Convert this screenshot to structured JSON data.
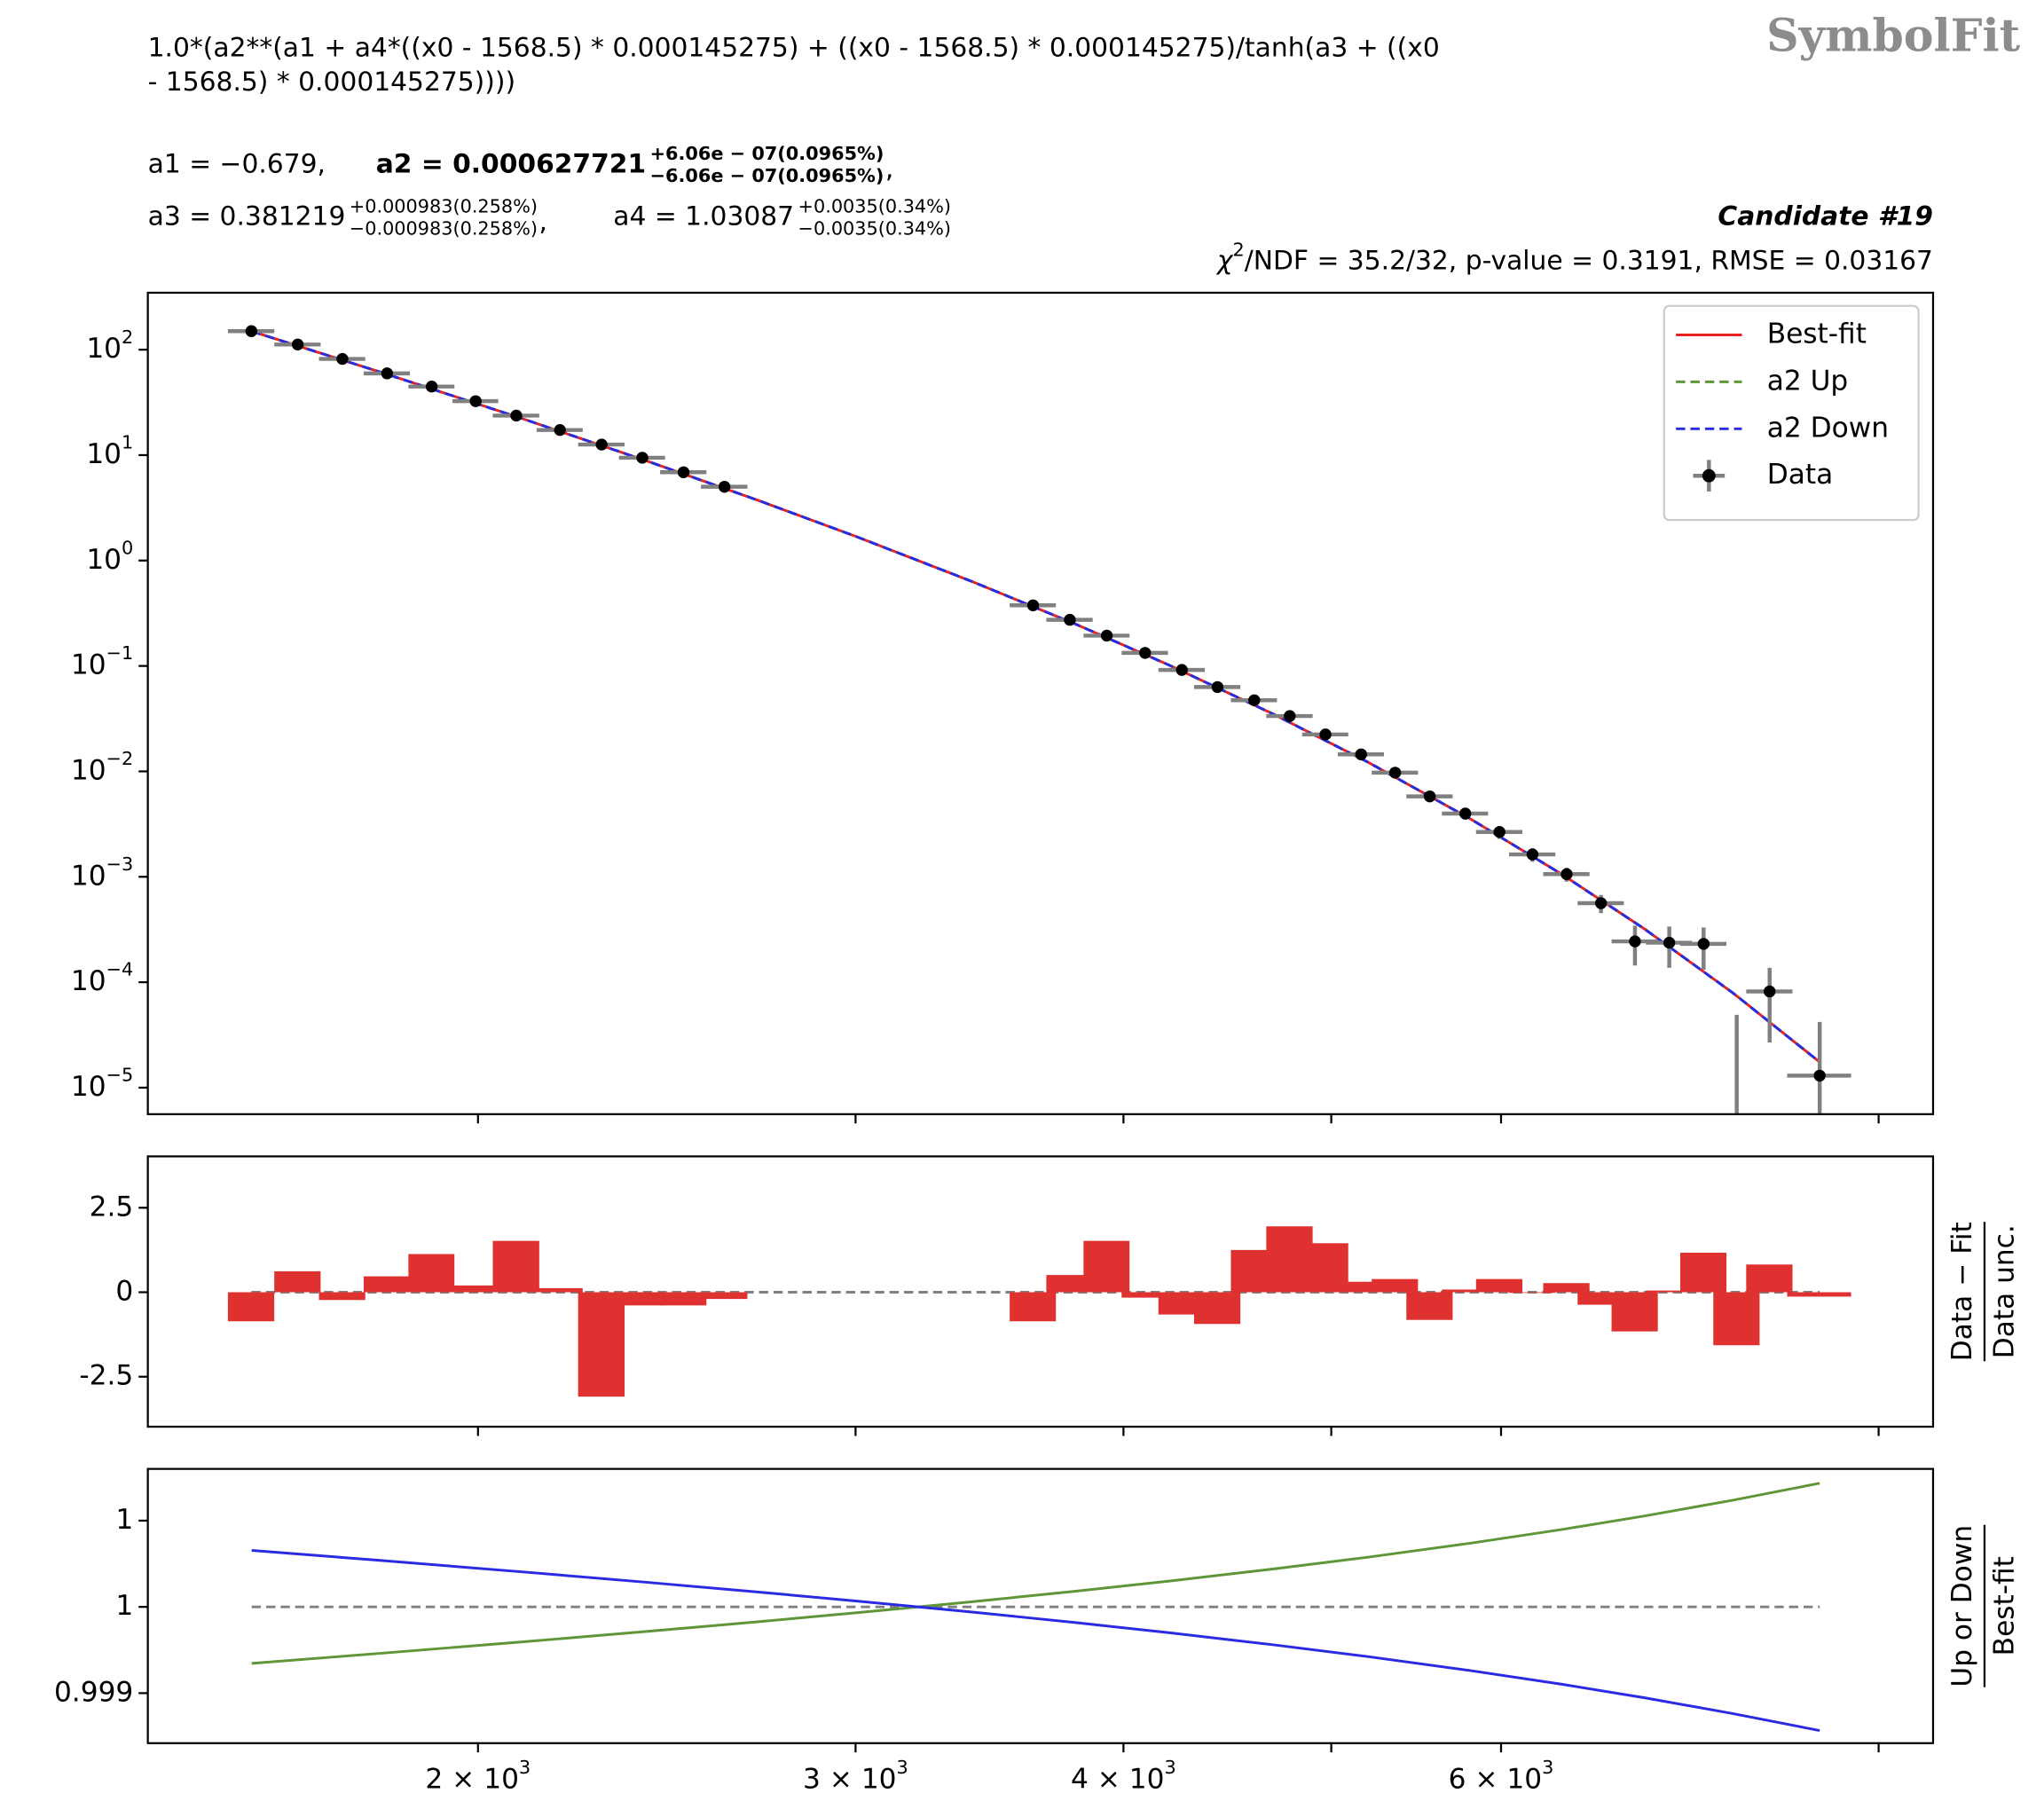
{
  "logo": "SymbolFit",
  "formula": [
    "1.0*(a2**(a1 + a4*((x0 - 1568.5) * 0.000145275) + ((x0 - 1568.5) * 0.000145275)/tanh(a3 + ((x0",
    "- 1568.5) * 0.000145275))))"
  ],
  "params": [
    {
      "text": "a1 = −0.679,"
    },
    {
      "text": "a2 = 0.000627721",
      "up": "+6.06e − 07(0.0965%)",
      "down": "−6.06e − 07(0.0965%)",
      "suffix": ","
    },
    {
      "text": "a3 = 0.381219",
      "up": "+0.000983(0.258%)",
      "down": "−0.000983(0.258%)",
      "suffix": ","
    },
    {
      "text": "a4 = 1.03087",
      "up": "+0.0035(0.34%)",
      "down": "−0.0035(0.34%)"
    }
  ],
  "candidate": "Candidate #19",
  "stats": {
    "chi": "χ",
    "sup": "2",
    "text": "/NDF = 35.2/32, p-value = 0.3191, RMSE = 0.03167"
  },
  "chart_data": [
    {
      "type": "line",
      "log_x": true,
      "log_y": true,
      "x": [
        1568.5,
        1800,
        2100,
        2400,
        2700,
        3000,
        3400,
        3800,
        4200,
        4700,
        5200,
        5800,
        6400,
        7000,
        7700,
        8448
      ],
      "series": [
        {
          "name": "Best-fit",
          "color": "#e8231f",
          "style": "solid",
          "values": [
            149.4,
            61.51,
            22.02,
            8.737,
            3.741,
            1.697,
            0.6322,
            0.249,
            0.1021,
            0.03482,
            0.01225,
            0.003586,
            0.001067,
            0.0003197,
            7.857e-05,
            1.749e-05
          ]
        },
        {
          "name": "a2 Up",
          "color": "#5e9638",
          "style": "dashed",
          "values": [
            149.4,
            61.51,
            22.02,
            8.737,
            3.741,
            1.697,
            0.6322,
            0.249,
            0.1021,
            0.03482,
            0.01225,
            0.003586,
            0.001067,
            0.0003197,
            7.857e-05,
            1.749e-05
          ]
        },
        {
          "name": "a2 Down",
          "color": "#2a2ae2",
          "style": "dashed",
          "values": [
            149.4,
            61.51,
            22.02,
            8.737,
            3.741,
            1.697,
            0.6322,
            0.249,
            0.1021,
            0.03482,
            0.01225,
            0.003586,
            0.001067,
            0.0003197,
            7.857e-05,
            1.749e-05
          ]
        }
      ],
      "points": {
        "name": "Data",
        "color": "#000000",
        "error_color": "#808080",
        "x": [
          1568,
          1648,
          1729,
          1814,
          1903,
          1995,
          2084,
          2184,
          2284,
          2386,
          2494,
          2606,
          3630,
          3776,
          3929,
          4094,
          4259,
          4425,
          4603,
          4782,
          4969,
          5163,
          5355,
          5558,
          5774,
          5990,
          6206,
          6438,
          6680,
          6928,
          7188,
          7458,
          7728,
          8006,
          8448
        ],
        "xerr": [
          39,
          41,
          43,
          45,
          47,
          49,
          52,
          54,
          57,
          59,
          62,
          65,
          90,
          94,
          97,
          102,
          106,
          110,
          114,
          119,
          123,
          128,
          133,
          138,
          143,
          149,
          154,
          160,
          166,
          172,
          178,
          185,
          192,
          199,
          290
        ],
        "values": [
          150,
          112,
          81.7,
          59.6,
          44.7,
          32.5,
          23.7,
          17.3,
          12.6,
          9.44,
          6.88,
          5.01,
          0.376,
          0.274,
          0.194,
          0.133,
          0.0917,
          0.0631,
          0.0473,
          0.0335,
          0.0224,
          0.0145,
          0.00972,
          0.00579,
          0.00398,
          0.00266,
          0.00163,
          0.00106,
          0.000562,
          0.000244,
          0.000237,
          0.000231,
          0,
          8.18e-05,
          1.3e-05
        ],
        "yerr": [
          4.5,
          3.5,
          2.6,
          2.0,
          1.5,
          1.1,
          0.85,
          0.65,
          0.5,
          0.38,
          0.29,
          0.22,
          0.018,
          0.014,
          0.011,
          0.0082,
          0.006,
          0.0045,
          0.0035,
          0.0027,
          0.002,
          0.0014,
          0.001,
          0.00068,
          0.0005,
          0.00037,
          0.00024,
          0.00016,
          0.00011,
          0.0001,
          0.0001,
          0.0001,
          4.9e-05,
          5.5e-05,
          2.9e-05
        ]
      },
      "xlim": [
        1403,
        9542
      ],
      "ylim": [
        5.6e-06,
        347
      ],
      "yticks": [
        {
          "value": 100,
          "label": "10",
          "sup": "2"
        },
        {
          "value": 10,
          "label": "10",
          "sup": "1"
        },
        {
          "value": 1,
          "label": "10",
          "sup": "0"
        },
        {
          "value": 0.1,
          "label": "10",
          "sup": "−1"
        },
        {
          "value": 0.01,
          "label": "10",
          "sup": "−2"
        },
        {
          "value": 0.001,
          "label": "10",
          "sup": "−3"
        },
        {
          "value": 0.0001,
          "label": "10",
          "sup": "−4"
        },
        {
          "value": 1e-05,
          "label": "10",
          "sup": "−5"
        }
      ],
      "legend": "upper right"
    },
    {
      "type": "bar",
      "log_x": true,
      "color": "#e03131",
      "x": [
        1568,
        1648,
        1729,
        1814,
        1903,
        1995,
        2084,
        2184,
        2284,
        2386,
        2494,
        2606,
        3630,
        3776,
        3929,
        4094,
        4259,
        4425,
        4603,
        4782,
        4969,
        5163,
        5355,
        5558,
        5774,
        5990,
        6206,
        6438,
        6680,
        6928,
        7188,
        7458,
        7728,
        8006,
        8448
      ],
      "xerr": [
        39,
        41,
        43,
        45,
        47,
        49,
        52,
        54,
        57,
        59,
        62,
        65,
        90,
        94,
        97,
        102,
        106,
        110,
        114,
        119,
        123,
        128,
        133,
        138,
        143,
        149,
        154,
        160,
        166,
        172,
        178,
        185,
        192,
        199,
        290
      ],
      "values": [
        -0.86,
        0.62,
        -0.23,
        0.47,
        1.13,
        0.2,
        1.52,
        0.12,
        -3.09,
        -0.39,
        -0.39,
        -0.2,
        -0.86,
        0.51,
        1.52,
        -0.16,
        -0.66,
        -0.94,
        1.25,
        1.95,
        1.45,
        0.31,
        0.39,
        -0.82,
        0.08,
        0.39,
        -0.02,
        0.27,
        -0.37,
        -1.16,
        0.05,
        1.17,
        -1.57,
        0.82,
        -0.13
      ],
      "xlim": [
        1403,
        9542
      ],
      "ylim": [
        -3.98,
        4.02
      ],
      "yticks": [
        2.5,
        0,
        -2.5
      ],
      "hline": 0,
      "ylabel": [
        "Data − Fit",
        "Data unc."
      ]
    },
    {
      "type": "line",
      "log_x": true,
      "x": [
        1568.5,
        1800,
        2100,
        2400,
        2700,
        3000,
        3400,
        3800,
        4200,
        4700,
        5200,
        5800,
        6400,
        7000,
        7700,
        8448
      ],
      "series": [
        {
          "color": "#5e9638",
          "style": "solid",
          "values": [
            0.999345,
            0.999461,
            0.999595,
            0.999716,
            0.999827,
            0.999931,
            1.00006,
            1.000182,
            1.000299,
            1.00044,
            1.000576,
            1.000737,
            1.000896,
            1.001054,
            1.001238,
            1.001434
          ]
        },
        {
          "color": "#2a2ae2",
          "style": "solid",
          "values": [
            1.000655,
            1.000539,
            1.000405,
            1.000284,
            1.000173,
            1.000069,
            0.99994,
            0.999818,
            0.999701,
            0.99956,
            0.999424,
            0.999263,
            0.999104,
            0.998946,
            0.998762,
            0.998566
          ]
        }
      ],
      "xlim": [
        1403,
        9542
      ],
      "ylim": [
        0.99842,
        1.0016
      ],
      "yticks": [
        {
          "value": 1.001,
          "label": "1"
        },
        1,
        0.999
      ],
      "hline": 1,
      "xticks": [
        {
          "value": 2000,
          "label": "2 × 10",
          "sup": "3"
        },
        {
          "value": 3000,
          "label": "3 × 10",
          "sup": "3"
        },
        {
          "value": 4000,
          "label": "4 × 10",
          "sup": "3"
        },
        {
          "value": 6000,
          "label": "6 × 10",
          "sup": "3"
        }
      ],
      "xminorticks": [
        5000,
        9000
      ],
      "ylabel": [
        "Up or Down",
        "Best-fit"
      ]
    }
  ]
}
